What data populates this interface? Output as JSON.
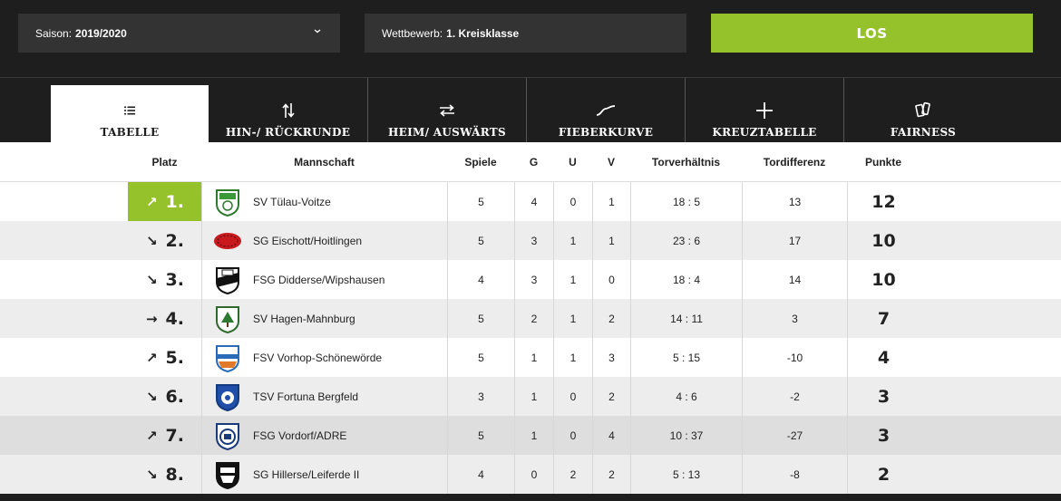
{
  "filters": {
    "season": {
      "label": "Saison:",
      "value": "2019/2020"
    },
    "competition": {
      "label": "Wettbewerb:",
      "value": "1. Kreisklasse"
    },
    "go_label": "LOS"
  },
  "tabs": [
    {
      "label": "TABELLE",
      "icon": "list-icon",
      "active": true
    },
    {
      "label": "HIN-/ RÜCKRUNDE",
      "icon": "up-down-arrows-icon"
    },
    {
      "label": "HEIM/ AUSWÄRTS",
      "icon": "left-right-arrows-icon"
    },
    {
      "label": "FIEBERKURVE",
      "icon": "curve-icon"
    },
    {
      "label": "KREUZTABELLE",
      "icon": "plus-icon"
    },
    {
      "label": "FAIRNESS",
      "icon": "cards-icon"
    }
  ],
  "columns": {
    "platz": "Platz",
    "mannschaft": "Mannschaft",
    "spiele": "Spiele",
    "g": "G",
    "u": "U",
    "v": "V",
    "torverhaeltnis": "Torverhältnis",
    "tordifferenz": "Tordifferenz",
    "punkte": "Punkte"
  },
  "rows": [
    {
      "rank": "1.",
      "trend": "↗",
      "team": "SV Tülau-Voitze",
      "spiele": "5",
      "g": "4",
      "u": "0",
      "v": "1",
      "tore": "18 : 5",
      "diff": "13",
      "punkte": "12"
    },
    {
      "rank": "2.",
      "trend": "↘",
      "team": "SG Eischott/Hoitlingen",
      "spiele": "5",
      "g": "3",
      "u": "1",
      "v": "1",
      "tore": "23 : 6",
      "diff": "17",
      "punkte": "10"
    },
    {
      "rank": "3.",
      "trend": "↘",
      "team": "FSG Didderse/Wipshausen",
      "spiele": "4",
      "g": "3",
      "u": "1",
      "v": "0",
      "tore": "18 : 4",
      "diff": "14",
      "punkte": "10"
    },
    {
      "rank": "4.",
      "trend": "→",
      "team": "SV Hagen-Mahnburg",
      "spiele": "5",
      "g": "2",
      "u": "1",
      "v": "2",
      "tore": "14 : 11",
      "diff": "3",
      "punkte": "7"
    },
    {
      "rank": "5.",
      "trend": "↗",
      "team": "FSV Vorhop-Schönewörde",
      "spiele": "5",
      "g": "1",
      "u": "1",
      "v": "3",
      "tore": "5 : 15",
      "diff": "-10",
      "punkte": "4"
    },
    {
      "rank": "6.",
      "trend": "↘",
      "team": "TSV Fortuna Bergfeld",
      "spiele": "3",
      "g": "1",
      "u": "0",
      "v": "2",
      "tore": "4 : 6",
      "diff": "-2",
      "punkte": "3"
    },
    {
      "rank": "7.",
      "trend": "↗",
      "team": "FSG Vordorf/ADRE",
      "spiele": "5",
      "g": "1",
      "u": "0",
      "v": "4",
      "tore": "10 : 37",
      "diff": "-27",
      "punkte": "3"
    },
    {
      "rank": "8.",
      "trend": "↘",
      "team": "SG Hillerse/Leiferde II",
      "spiele": "4",
      "g": "0",
      "u": "2",
      "v": "2",
      "tore": "5 : 13",
      "diff": "-8",
      "punkte": "2"
    }
  ],
  "colors": {
    "accent": "#95c22b",
    "dark": "#1e1e1e",
    "select_bg": "#333333",
    "row_alt": "#ededed"
  }
}
